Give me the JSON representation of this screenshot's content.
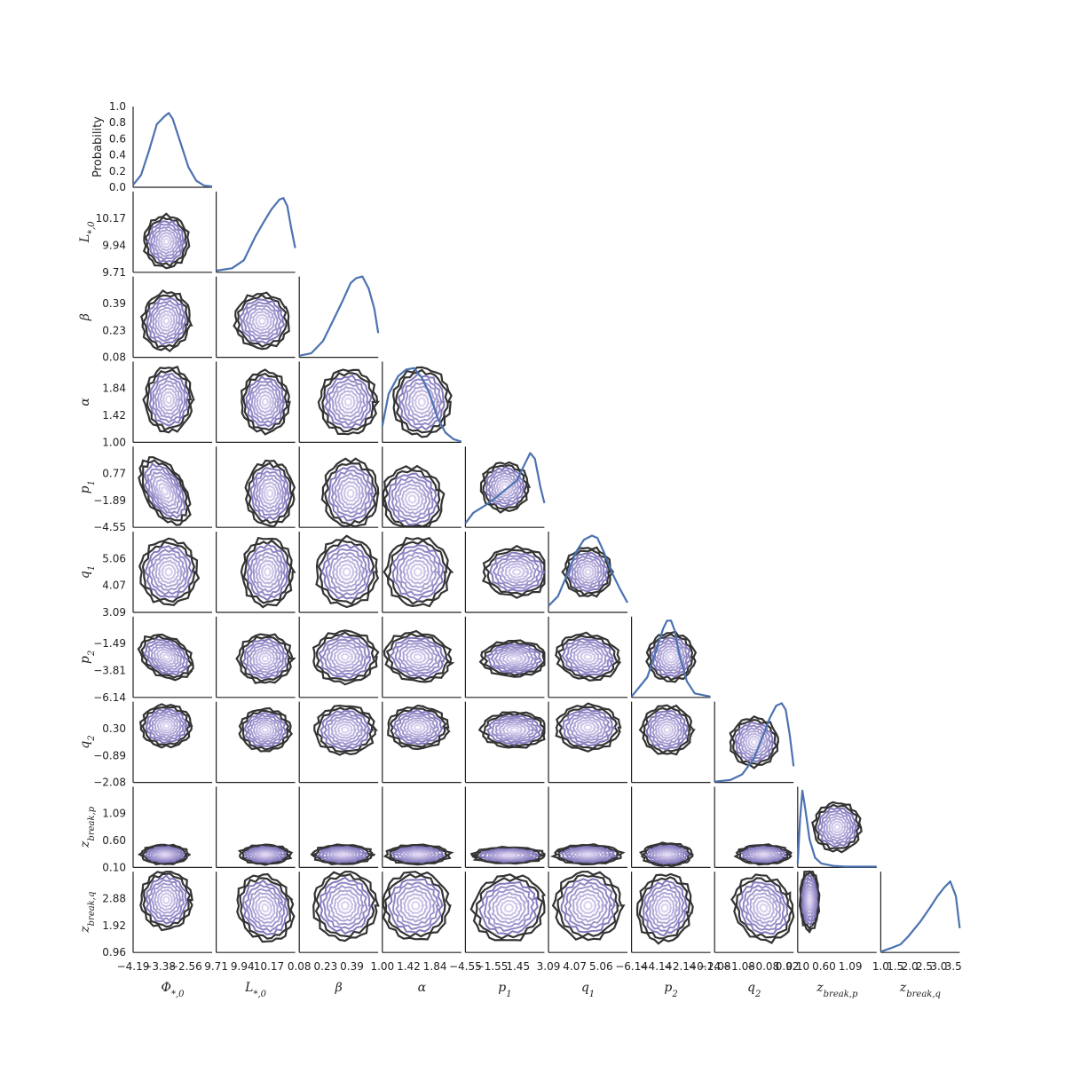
{
  "chart_data": {
    "type": "corner",
    "description_type": "pairwise contour matrix with marginal density diagonal",
    "colors": {
      "marginal_line": "#4c72b0",
      "contour_outer": "#333333",
      "contour_inner": "#8a80c0",
      "contour_fill": "#ffffff"
    },
    "diagonal_ylabel": "Probability",
    "diagonal_yticks": [
      "0.0",
      "0.2",
      "0.4",
      "0.6",
      "0.8",
      "1.0"
    ],
    "diagonal_ylim": [
      0,
      1
    ],
    "params": [
      {
        "name": "Φ*,0",
        "label_main": "Φ",
        "label_sub": "*,0",
        "xticks": [
          "−4.19",
          "−3.38",
          "−2.56"
        ],
        "yticks": []
      },
      {
        "name": "L*,0",
        "label_main": "L",
        "label_sub": "*,0",
        "xticks": [
          "9.71",
          "9.94",
          "10.17"
        ],
        "yticks": [
          "9.71",
          "9.94",
          "10.17"
        ]
      },
      {
        "name": "β",
        "label_main": "β",
        "label_sub": "",
        "xticks": [
          "0.08",
          "0.23",
          "0.39"
        ],
        "yticks": [
          "0.08",
          "0.23",
          "0.39"
        ]
      },
      {
        "name": "α",
        "label_main": "α",
        "label_sub": "",
        "xticks": [
          "1.00",
          "1.42",
          "1.84"
        ],
        "yticks": [
          "1.00",
          "1.42",
          "1.84"
        ]
      },
      {
        "name": "p1",
        "label_main": "p",
        "label_sub": "1",
        "xticks": [
          "−4.55",
          "−1.55",
          "1.45"
        ],
        "yticks": [
          "−4.55",
          "−1.89",
          "0.77"
        ]
      },
      {
        "name": "q1",
        "label_main": "q",
        "label_sub": "1",
        "xticks": [
          "3.09",
          "4.07",
          "5.06"
        ],
        "yticks": [
          "3.09",
          "4.07",
          "5.06"
        ]
      },
      {
        "name": "p2",
        "label_main": "p",
        "label_sub": "2",
        "xticks": [
          "−6.14",
          "−4.14",
          "−2.14",
          "−0.14"
        ],
        "yticks": [
          "−6.14",
          "−3.81",
          "−1.49"
        ]
      },
      {
        "name": "q2",
        "label_main": "q",
        "label_sub": "2",
        "xticks": [
          "−2.08",
          "−1.08",
          "−0.08",
          "0.92"
        ],
        "yticks": [
          "−2.08",
          "−0.89",
          "0.30"
        ]
      },
      {
        "name": "zbreak,p",
        "label_main": "z",
        "label_sub": "break,p",
        "xticks": [
          "0.10",
          "0.60",
          "1.09"
        ],
        "yticks": [
          "0.10",
          "0.60",
          "1.09"
        ]
      },
      {
        "name": "zbreak,q",
        "label_main": "z",
        "label_sub": "break,q",
        "xticks": [
          "1.0",
          "1.5",
          "2.0",
          "2.5",
          "3.0",
          "3.5"
        ],
        "yticks": [
          "0.96",
          "1.92",
          "2.88"
        ]
      }
    ],
    "marginals": [
      {
        "param": "Φ*,0",
        "x": [
          0,
          0.1,
          0.2,
          0.3,
          0.4,
          0.45,
          0.5,
          0.6,
          0.7,
          0.8,
          0.9,
          1.0
        ],
        "y": [
          0.03,
          0.15,
          0.45,
          0.78,
          0.88,
          0.92,
          0.85,
          0.55,
          0.25,
          0.08,
          0.02,
          0.01
        ]
      },
      {
        "param": "L*,0",
        "x": [
          0,
          0.2,
          0.35,
          0.5,
          0.6,
          0.7,
          0.8,
          0.85,
          0.9,
          0.95,
          1.0
        ],
        "y": [
          0.02,
          0.05,
          0.15,
          0.45,
          0.62,
          0.78,
          0.9,
          0.92,
          0.82,
          0.55,
          0.3
        ]
      },
      {
        "param": "β",
        "x": [
          0,
          0.15,
          0.3,
          0.45,
          0.55,
          0.65,
          0.72,
          0.8,
          0.88,
          0.95,
          1.0
        ],
        "y": [
          0.02,
          0.05,
          0.2,
          0.5,
          0.7,
          0.92,
          0.98,
          1.0,
          0.85,
          0.6,
          0.3
        ]
      },
      {
        "param": "α",
        "x": [
          0,
          0.08,
          0.2,
          0.3,
          0.4,
          0.5,
          0.6,
          0.7,
          0.8,
          0.9,
          1.0
        ],
        "y": [
          0.2,
          0.6,
          0.82,
          0.9,
          0.92,
          0.8,
          0.6,
          0.3,
          0.12,
          0.04,
          0.01
        ]
      },
      {
        "param": "p1",
        "x": [
          0,
          0.1,
          0.25,
          0.4,
          0.55,
          0.65,
          0.75,
          0.82,
          0.88,
          0.95,
          1.0
        ],
        "y": [
          0.05,
          0.18,
          0.27,
          0.38,
          0.5,
          0.58,
          0.78,
          0.92,
          0.85,
          0.5,
          0.3
        ]
      },
      {
        "param": "q1",
        "x": [
          0,
          0.12,
          0.25,
          0.35,
          0.45,
          0.55,
          0.62,
          0.7,
          0.8,
          0.9,
          1.0
        ],
        "y": [
          0.08,
          0.2,
          0.5,
          0.75,
          0.9,
          0.95,
          0.92,
          0.75,
          0.5,
          0.3,
          0.12
        ]
      },
      {
        "param": "p2",
        "x": [
          0,
          0.2,
          0.3,
          0.4,
          0.45,
          0.5,
          0.55,
          0.6,
          0.7,
          0.8,
          1.0
        ],
        "y": [
          0.01,
          0.25,
          0.55,
          0.85,
          0.95,
          0.95,
          0.82,
          0.55,
          0.2,
          0.05,
          0.01
        ]
      },
      {
        "param": "q2",
        "x": [
          0,
          0.2,
          0.35,
          0.5,
          0.6,
          0.7,
          0.78,
          0.85,
          0.9,
          0.95,
          1.0
        ],
        "y": [
          0.01,
          0.03,
          0.1,
          0.3,
          0.55,
          0.8,
          0.95,
          0.98,
          0.9,
          0.6,
          0.2
        ]
      },
      {
        "param": "zbreak,p",
        "x": [
          0,
          0.03,
          0.06,
          0.1,
          0.15,
          0.22,
          0.3,
          0.45,
          0.6,
          1.0
        ],
        "y": [
          0.05,
          0.6,
          0.95,
          0.7,
          0.35,
          0.12,
          0.05,
          0.02,
          0.01,
          0.01
        ]
      },
      {
        "param": "zbreak,q",
        "x": [
          0,
          0.12,
          0.25,
          0.35,
          0.5,
          0.62,
          0.72,
          0.8,
          0.88,
          0.95,
          1.0
        ],
        "y": [
          0.01,
          0.05,
          0.1,
          0.2,
          0.38,
          0.55,
          0.7,
          0.8,
          0.88,
          0.7,
          0.3
        ]
      }
    ],
    "pairs": [
      {
        "row": 1,
        "col": 0,
        "cx": 0.42,
        "cy": 0.62,
        "sx": 0.28,
        "sy": 0.32,
        "rot": 0
      },
      {
        "row": 2,
        "col": 0,
        "cx": 0.42,
        "cy": 0.55,
        "sx": 0.3,
        "sy": 0.36,
        "rot": 10
      },
      {
        "row": 2,
        "col": 1,
        "cx": 0.58,
        "cy": 0.55,
        "sx": 0.34,
        "sy": 0.34,
        "rot": -30
      },
      {
        "row": 3,
        "col": 0,
        "cx": 0.45,
        "cy": 0.47,
        "sx": 0.3,
        "sy": 0.4,
        "rot": 0
      },
      {
        "row": 3,
        "col": 1,
        "cx": 0.62,
        "cy": 0.5,
        "sx": 0.3,
        "sy": 0.38,
        "rot": 0
      },
      {
        "row": 3,
        "col": 2,
        "cx": 0.62,
        "cy": 0.5,
        "sx": 0.36,
        "sy": 0.4,
        "rot": 0
      },
      {
        "row": 3,
        "col": 3,
        "cx": 0.5,
        "cy": 0.5,
        "sx": 0.36,
        "sy": 0.42,
        "rot": 0
      },
      {
        "row": 4,
        "col": 0,
        "cx": 0.4,
        "cy": 0.55,
        "sx": 0.25,
        "sy": 0.45,
        "rot": -30
      },
      {
        "row": 4,
        "col": 1,
        "cx": 0.68,
        "cy": 0.58,
        "sx": 0.3,
        "sy": 0.4,
        "rot": 0
      },
      {
        "row": 4,
        "col": 2,
        "cx": 0.65,
        "cy": 0.58,
        "sx": 0.35,
        "sy": 0.42,
        "rot": 0
      },
      {
        "row": 4,
        "col": 3,
        "cx": 0.38,
        "cy": 0.65,
        "sx": 0.38,
        "sy": 0.4,
        "rot": -20
      },
      {
        "row": 4,
        "col": 4,
        "cx": 0.5,
        "cy": 0.5,
        "sx": 0.3,
        "sy": 0.3,
        "rot": 0
      },
      {
        "row": 5,
        "col": 0,
        "cx": 0.45,
        "cy": 0.5,
        "sx": 0.36,
        "sy": 0.4,
        "rot": 0
      },
      {
        "row": 5,
        "col": 1,
        "cx": 0.65,
        "cy": 0.5,
        "sx": 0.32,
        "sy": 0.42,
        "rot": 0
      },
      {
        "row": 5,
        "col": 2,
        "cx": 0.6,
        "cy": 0.5,
        "sx": 0.38,
        "sy": 0.42,
        "rot": 0
      },
      {
        "row": 5,
        "col": 3,
        "cx": 0.45,
        "cy": 0.5,
        "sx": 0.4,
        "sy": 0.42,
        "rot": 0
      },
      {
        "row": 5,
        "col": 4,
        "cx": 0.65,
        "cy": 0.5,
        "sx": 0.42,
        "sy": 0.3,
        "rot": 0
      },
      {
        "row": 5,
        "col": 5,
        "cx": 0.5,
        "cy": 0.5,
        "sx": 0.3,
        "sy": 0.3,
        "rot": 0
      },
      {
        "row": 6,
        "col": 0,
        "cx": 0.42,
        "cy": 0.5,
        "sx": 0.36,
        "sy": 0.24,
        "rot": 30
      },
      {
        "row": 6,
        "col": 1,
        "cx": 0.62,
        "cy": 0.52,
        "sx": 0.34,
        "sy": 0.3,
        "rot": 0
      },
      {
        "row": 6,
        "col": 2,
        "cx": 0.58,
        "cy": 0.5,
        "sx": 0.4,
        "sy": 0.32,
        "rot": 0
      },
      {
        "row": 6,
        "col": 3,
        "cx": 0.45,
        "cy": 0.5,
        "sx": 0.42,
        "sy": 0.3,
        "rot": 10
      },
      {
        "row": 6,
        "col": 4,
        "cx": 0.62,
        "cy": 0.52,
        "sx": 0.42,
        "sy": 0.22,
        "rot": 0
      },
      {
        "row": 6,
        "col": 5,
        "cx": 0.5,
        "cy": 0.5,
        "sx": 0.4,
        "sy": 0.28,
        "rot": 10
      },
      {
        "row": 6,
        "col": 6,
        "cx": 0.5,
        "cy": 0.5,
        "sx": 0.3,
        "sy": 0.3,
        "rot": 0
      },
      {
        "row": 7,
        "col": 0,
        "cx": 0.42,
        "cy": 0.3,
        "sx": 0.32,
        "sy": 0.26,
        "rot": 0
      },
      {
        "row": 7,
        "col": 1,
        "cx": 0.62,
        "cy": 0.35,
        "sx": 0.32,
        "sy": 0.26,
        "rot": 0
      },
      {
        "row": 7,
        "col": 2,
        "cx": 0.58,
        "cy": 0.35,
        "sx": 0.38,
        "sy": 0.3,
        "rot": 0
      },
      {
        "row": 7,
        "col": 3,
        "cx": 0.45,
        "cy": 0.32,
        "sx": 0.38,
        "sy": 0.26,
        "rot": 0
      },
      {
        "row": 7,
        "col": 4,
        "cx": 0.62,
        "cy": 0.35,
        "sx": 0.42,
        "sy": 0.22,
        "rot": 0
      },
      {
        "row": 7,
        "col": 5,
        "cx": 0.5,
        "cy": 0.32,
        "sx": 0.4,
        "sy": 0.28,
        "rot": 0
      },
      {
        "row": 7,
        "col": 6,
        "cx": 0.45,
        "cy": 0.35,
        "sx": 0.32,
        "sy": 0.3,
        "rot": 0
      },
      {
        "row": 7,
        "col": 7,
        "cx": 0.5,
        "cy": 0.5,
        "sx": 0.3,
        "sy": 0.3,
        "rot": 0
      },
      {
        "row": 8,
        "col": 0,
        "cx": 0.4,
        "cy": 0.84,
        "sx": 0.3,
        "sy": 0.12,
        "rot": 0
      },
      {
        "row": 8,
        "col": 1,
        "cx": 0.62,
        "cy": 0.84,
        "sx": 0.32,
        "sy": 0.12,
        "rot": 0
      },
      {
        "row": 8,
        "col": 2,
        "cx": 0.55,
        "cy": 0.84,
        "sx": 0.38,
        "sy": 0.12,
        "rot": 0
      },
      {
        "row": 8,
        "col": 3,
        "cx": 0.45,
        "cy": 0.84,
        "sx": 0.4,
        "sy": 0.12,
        "rot": 0
      },
      {
        "row": 8,
        "col": 4,
        "cx": 0.55,
        "cy": 0.85,
        "sx": 0.46,
        "sy": 0.1,
        "rot": 0
      },
      {
        "row": 8,
        "col": 5,
        "cx": 0.5,
        "cy": 0.84,
        "sx": 0.42,
        "sy": 0.12,
        "rot": 0
      },
      {
        "row": 8,
        "col": 6,
        "cx": 0.45,
        "cy": 0.84,
        "sx": 0.32,
        "sy": 0.14,
        "rot": 0
      },
      {
        "row": 8,
        "col": 7,
        "cx": 0.62,
        "cy": 0.84,
        "sx": 0.34,
        "sy": 0.12,
        "rot": 0
      },
      {
        "row": 8,
        "col": 8,
        "cx": 0.5,
        "cy": 0.5,
        "sx": 0.3,
        "sy": 0.3,
        "rot": 0
      },
      {
        "row": 9,
        "col": 0,
        "cx": 0.42,
        "cy": 0.35,
        "sx": 0.32,
        "sy": 0.36,
        "rot": 0
      },
      {
        "row": 9,
        "col": 1,
        "cx": 0.62,
        "cy": 0.45,
        "sx": 0.34,
        "sy": 0.42,
        "rot": -20
      },
      {
        "row": 9,
        "col": 2,
        "cx": 0.58,
        "cy": 0.42,
        "sx": 0.4,
        "sy": 0.42,
        "rot": 0
      },
      {
        "row": 9,
        "col": 3,
        "cx": 0.42,
        "cy": 0.42,
        "sx": 0.42,
        "sy": 0.42,
        "rot": 0
      },
      {
        "row": 9,
        "col": 4,
        "cx": 0.55,
        "cy": 0.45,
        "sx": 0.46,
        "sy": 0.4,
        "rot": -20
      },
      {
        "row": 9,
        "col": 5,
        "cx": 0.5,
        "cy": 0.42,
        "sx": 0.42,
        "sy": 0.42,
        "rot": 0
      },
      {
        "row": 9,
        "col": 6,
        "cx": 0.42,
        "cy": 0.45,
        "sx": 0.34,
        "sy": 0.42,
        "rot": 10
      },
      {
        "row": 9,
        "col": 7,
        "cx": 0.62,
        "cy": 0.45,
        "sx": 0.36,
        "sy": 0.42,
        "rot": -30
      },
      {
        "row": 9,
        "col": 8,
        "cx": 0.15,
        "cy": 0.35,
        "sx": 0.12,
        "sy": 0.38,
        "rot": 0
      }
    ]
  }
}
